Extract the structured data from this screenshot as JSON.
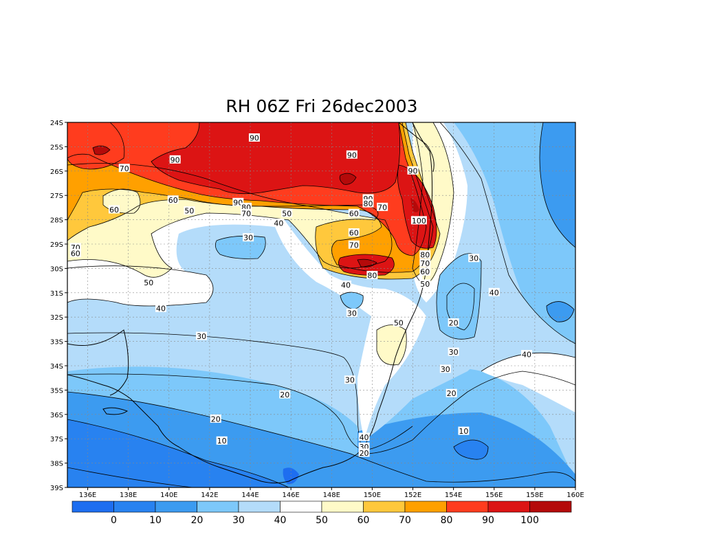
{
  "title": "RH 06Z Fri 26dec2003",
  "map": {
    "lon_range": [
      135,
      160
    ],
    "lat_range": [
      -39,
      -24
    ],
    "lon_ticks": [
      "136E",
      "138E",
      "140E",
      "142E",
      "144E",
      "146E",
      "148E",
      "150E",
      "152E",
      "154E",
      "156E",
      "158E",
      "160E"
    ],
    "lat_ticks": [
      "24S",
      "25S",
      "26S",
      "27S",
      "28S",
      "29S",
      "30S",
      "31S",
      "32S",
      "33S",
      "34S",
      "35S",
      "36S",
      "37S",
      "38S",
      "39S"
    ],
    "grid": "dotted"
  },
  "colorbar": {
    "labels": [
      "0",
      "10",
      "20",
      "30",
      "40",
      "50",
      "60",
      "70",
      "80",
      "90",
      "100"
    ],
    "colors": [
      "#1e6ef0",
      "#2882f0",
      "#3c9bf0",
      "#7dc8fa",
      "#b4dcfa",
      "#ffffff",
      "#fffac8",
      "#ffc83c",
      "#ffa000",
      "#ff3c1e",
      "#dc1414",
      "#b40a0a"
    ]
  },
  "contour_labels": [
    {
      "text": "90",
      "lon": 144.2,
      "lat": -24.65
    },
    {
      "text": "90",
      "lon": 149.0,
      "lat": -25.35
    },
    {
      "text": "90",
      "lon": 140.3,
      "lat": -25.55
    },
    {
      "text": "70",
      "lon": 137.8,
      "lat": -25.9
    },
    {
      "text": "90",
      "lon": 152.0,
      "lat": -26.0
    },
    {
      "text": "90",
      "lon": 143.4,
      "lat": -27.3
    },
    {
      "text": "80",
      "lon": 143.8,
      "lat": -27.5
    },
    {
      "text": "70",
      "lon": 143.8,
      "lat": -27.75
    },
    {
      "text": "60",
      "lon": 140.2,
      "lat": -27.2
    },
    {
      "text": "50",
      "lon": 141.0,
      "lat": -27.65
    },
    {
      "text": "60",
      "lon": 137.3,
      "lat": -27.6
    },
    {
      "text": "90",
      "lon": 149.8,
      "lat": -27.15
    },
    {
      "text": "80",
      "lon": 149.8,
      "lat": -27.35
    },
    {
      "text": "70",
      "lon": 150.5,
      "lat": -27.5
    },
    {
      "text": "50",
      "lon": 145.8,
      "lat": -27.75
    },
    {
      "text": "60",
      "lon": 149.1,
      "lat": -27.75
    },
    {
      "text": "40",
      "lon": 145.4,
      "lat": -28.15
    },
    {
      "text": "100",
      "lon": 152.3,
      "lat": -28.05
    },
    {
      "text": "30",
      "lon": 143.9,
      "lat": -28.75
    },
    {
      "text": "60",
      "lon": 149.1,
      "lat": -28.55
    },
    {
      "text": "70",
      "lon": 149.1,
      "lat": -29.05
    },
    {
      "text": "70",
      "lon": 135.4,
      "lat": -29.15
    },
    {
      "text": "60",
      "lon": 135.4,
      "lat": -29.4
    },
    {
      "text": "80",
      "lon": 152.6,
      "lat": -29.45
    },
    {
      "text": "70",
      "lon": 152.6,
      "lat": -29.8
    },
    {
      "text": "30",
      "lon": 155.0,
      "lat": -29.6
    },
    {
      "text": "60",
      "lon": 152.6,
      "lat": -30.15
    },
    {
      "text": "80",
      "lon": 150.0,
      "lat": -30.3
    },
    {
      "text": "50",
      "lon": 139.0,
      "lat": -30.6
    },
    {
      "text": "50",
      "lon": 152.6,
      "lat": -30.65
    },
    {
      "text": "40",
      "lon": 148.7,
      "lat": -30.7
    },
    {
      "text": "40",
      "lon": 156.0,
      "lat": -31.0
    },
    {
      "text": "40",
      "lon": 139.6,
      "lat": -31.65
    },
    {
      "text": "30",
      "lon": 149.0,
      "lat": -31.85
    },
    {
      "text": "50",
      "lon": 151.3,
      "lat": -32.25
    },
    {
      "text": "20",
      "lon": 154.0,
      "lat": -32.25
    },
    {
      "text": "30",
      "lon": 141.6,
      "lat": -32.8
    },
    {
      "text": "30",
      "lon": 154.0,
      "lat": -33.45
    },
    {
      "text": "40",
      "lon": 157.6,
      "lat": -33.55
    },
    {
      "text": "30",
      "lon": 153.6,
      "lat": -34.15
    },
    {
      "text": "30",
      "lon": 148.9,
      "lat": -34.6
    },
    {
      "text": "20",
      "lon": 145.7,
      "lat": -35.2
    },
    {
      "text": "20",
      "lon": 153.9,
      "lat": -35.15
    },
    {
      "text": "20",
      "lon": 142.3,
      "lat": -36.2
    },
    {
      "text": "10",
      "lon": 154.5,
      "lat": -36.7
    },
    {
      "text": "10",
      "lon": 142.6,
      "lat": -37.1
    },
    {
      "text": "40",
      "lon": 149.6,
      "lat": -36.95
    },
    {
      "text": "30",
      "lon": 149.6,
      "lat": -37.35
    },
    {
      "text": "20",
      "lon": 149.6,
      "lat": -37.6
    }
  ]
}
